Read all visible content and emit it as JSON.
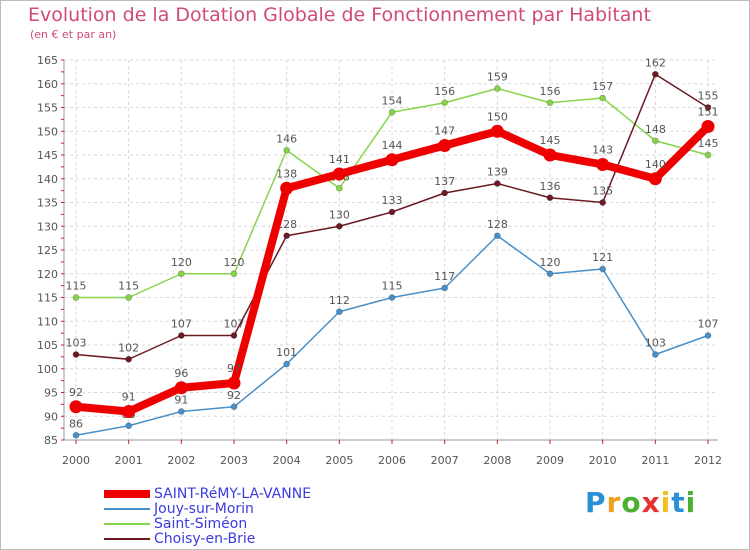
{
  "chart_data": {
    "type": "line",
    "title": "Evolution de la Dotation Globale de Fonctionnement par Habitant",
    "subtitle": "(en € et par an)",
    "xlabel": "",
    "ylabel": "",
    "x": [
      "2000",
      "2001",
      "2002",
      "2003",
      "2004",
      "2005",
      "2006",
      "2007",
      "2008",
      "2009",
      "2010",
      "2011",
      "2012"
    ],
    "ylim": [
      85,
      165
    ],
    "yticks": [
      85,
      90,
      95,
      100,
      105,
      110,
      115,
      120,
      125,
      130,
      135,
      140,
      145,
      150,
      155,
      160,
      165
    ],
    "grid": true,
    "legend_position": "bottom-left",
    "series": [
      {
        "name": "Jouy-sur-Morin",
        "color": "#4a90c8",
        "values": [
          86,
          88,
          91,
          92,
          101,
          112,
          115,
          117,
          128,
          120,
          121,
          103,
          107
        ]
      },
      {
        "name": "Saint-Siméon",
        "color": "#86d44a",
        "values": [
          115,
          115,
          120,
          120,
          146,
          138,
          154,
          156,
          159,
          156,
          157,
          148,
          145
        ]
      },
      {
        "name": "Choisy-en-Brie",
        "color": "#6b1a22",
        "values": [
          103,
          102,
          107,
          107,
          128,
          130,
          133,
          137,
          139,
          136,
          135,
          162,
          155
        ]
      },
      {
        "name": "SAINT-RéMY-LA-VANNE",
        "color": "#ee0000",
        "highlight": true,
        "values": [
          92,
          91,
          96,
          97,
          138,
          141,
          144,
          147,
          150,
          145,
          143,
          140,
          151
        ]
      }
    ]
  },
  "legend": [
    {
      "label": "SAINT-RéMY-LA-VANNE",
      "color": "#ee0000",
      "thick": true
    },
    {
      "label": "Jouy-sur-Morin",
      "color": "#4a90c8",
      "thick": false
    },
    {
      "label": "Saint-Siméon",
      "color": "#86d44a",
      "thick": false
    },
    {
      "label": "Choisy-en-Brie",
      "color": "#6b1a22",
      "thick": false
    }
  ],
  "logo": {
    "letters": [
      "P",
      "r",
      "o",
      "x",
      "i",
      "t",
      "i"
    ],
    "colors": [
      "#2a8fd8",
      "#f0a020",
      "#4ab030",
      "#e83030",
      "#f0c020",
      "#2a8fd8",
      "#4ab030"
    ]
  }
}
